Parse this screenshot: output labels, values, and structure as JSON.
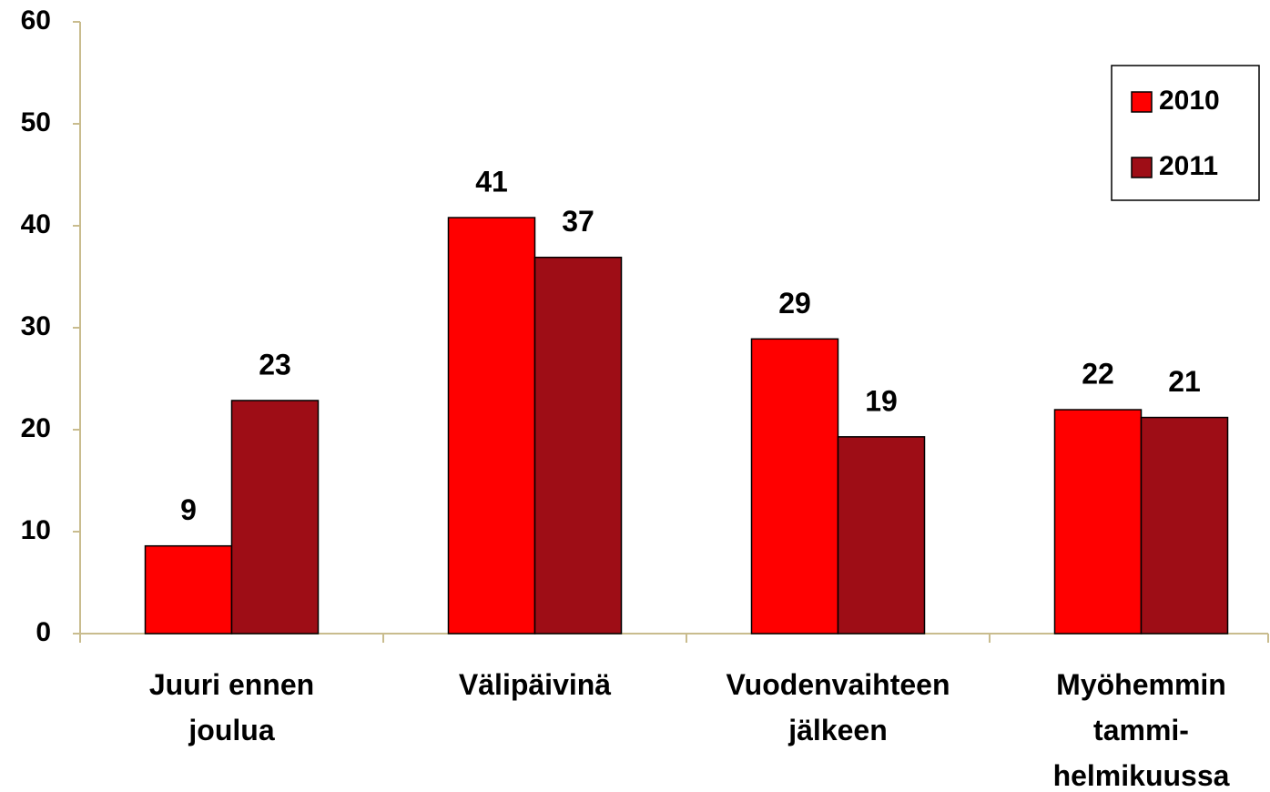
{
  "chart_data": {
    "type": "bar",
    "categories": [
      [
        "Juuri ennen",
        "joulua"
      ],
      [
        "Välipäivinä"
      ],
      [
        "Vuodenvaihteen",
        "jälkeen"
      ],
      [
        "Myöhemmin",
        "tammi-",
        "helmikuussa"
      ]
    ],
    "series": [
      {
        "name": "2010",
        "color": "#ff0000",
        "values": [
          8.6,
          40.8,
          28.9,
          21.96
        ],
        "value_labels": [
          "9",
          "41",
          "29",
          "22"
        ]
      },
      {
        "name": "2011",
        "color": "#9e0d16",
        "values": [
          22.86,
          36.9,
          19.3,
          21.2
        ],
        "value_labels": [
          "23",
          "37",
          "19",
          "21"
        ]
      }
    ],
    "ylim": [
      0,
      60
    ],
    "yticks": [
      0,
      10,
      20,
      30,
      40,
      50,
      60
    ],
    "grid": false,
    "legend": "upper right"
  }
}
